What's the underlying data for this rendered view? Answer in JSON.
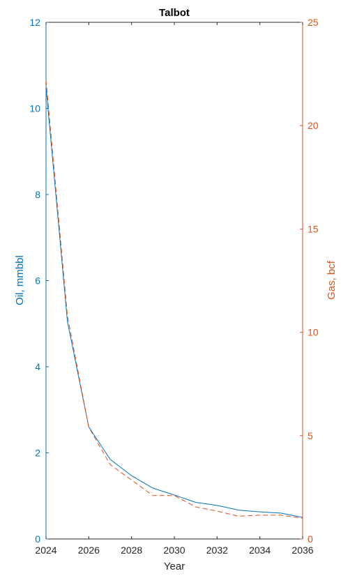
{
  "chart_data": {
    "type": "line",
    "title": "Talbot",
    "xlabel": "Year",
    "ylabel_left": "Oil, mmbbl",
    "ylabel_right": "Gas, bcf",
    "xlim": [
      2024,
      2036
    ],
    "ylim_left": [
      0,
      12
    ],
    "ylim_right": [
      0,
      25
    ],
    "x_ticks": [
      "2024",
      "2026",
      "2028",
      "2030",
      "2032",
      "2034",
      "2036"
    ],
    "y_left_ticks": [
      "0",
      "2",
      "4",
      "6",
      "8",
      "10",
      "12"
    ],
    "y_right_ticks": [
      "0",
      "5",
      "10",
      "15",
      "20",
      "25"
    ],
    "grid": false,
    "colors": {
      "oil": "#0072BD",
      "gas": "#D95319",
      "axis": "#262626"
    },
    "series": [
      {
        "axis": "left",
        "style": "solid",
        "x": [
          2024,
          2025,
          2026,
          2027,
          2028,
          2029,
          2030,
          2031,
          2032,
          2033,
          2034,
          2035,
          2036
        ],
        "values": [
          10.5,
          5.05,
          2.6,
          1.85,
          1.47,
          1.18,
          1.02,
          0.85,
          0.78,
          0.67,
          0.63,
          0.6,
          0.5
        ]
      },
      {
        "axis": "right",
        "style": "dashed",
        "x": [
          2024,
          2025,
          2026,
          2027,
          2028,
          2029,
          2030,
          2031,
          2032,
          2033,
          2034,
          2035,
          2036
        ],
        "values": [
          22.2,
          10.8,
          5.4,
          3.6,
          2.85,
          2.1,
          2.1,
          1.55,
          1.35,
          1.1,
          1.15,
          1.15,
          1.0
        ]
      }
    ]
  }
}
